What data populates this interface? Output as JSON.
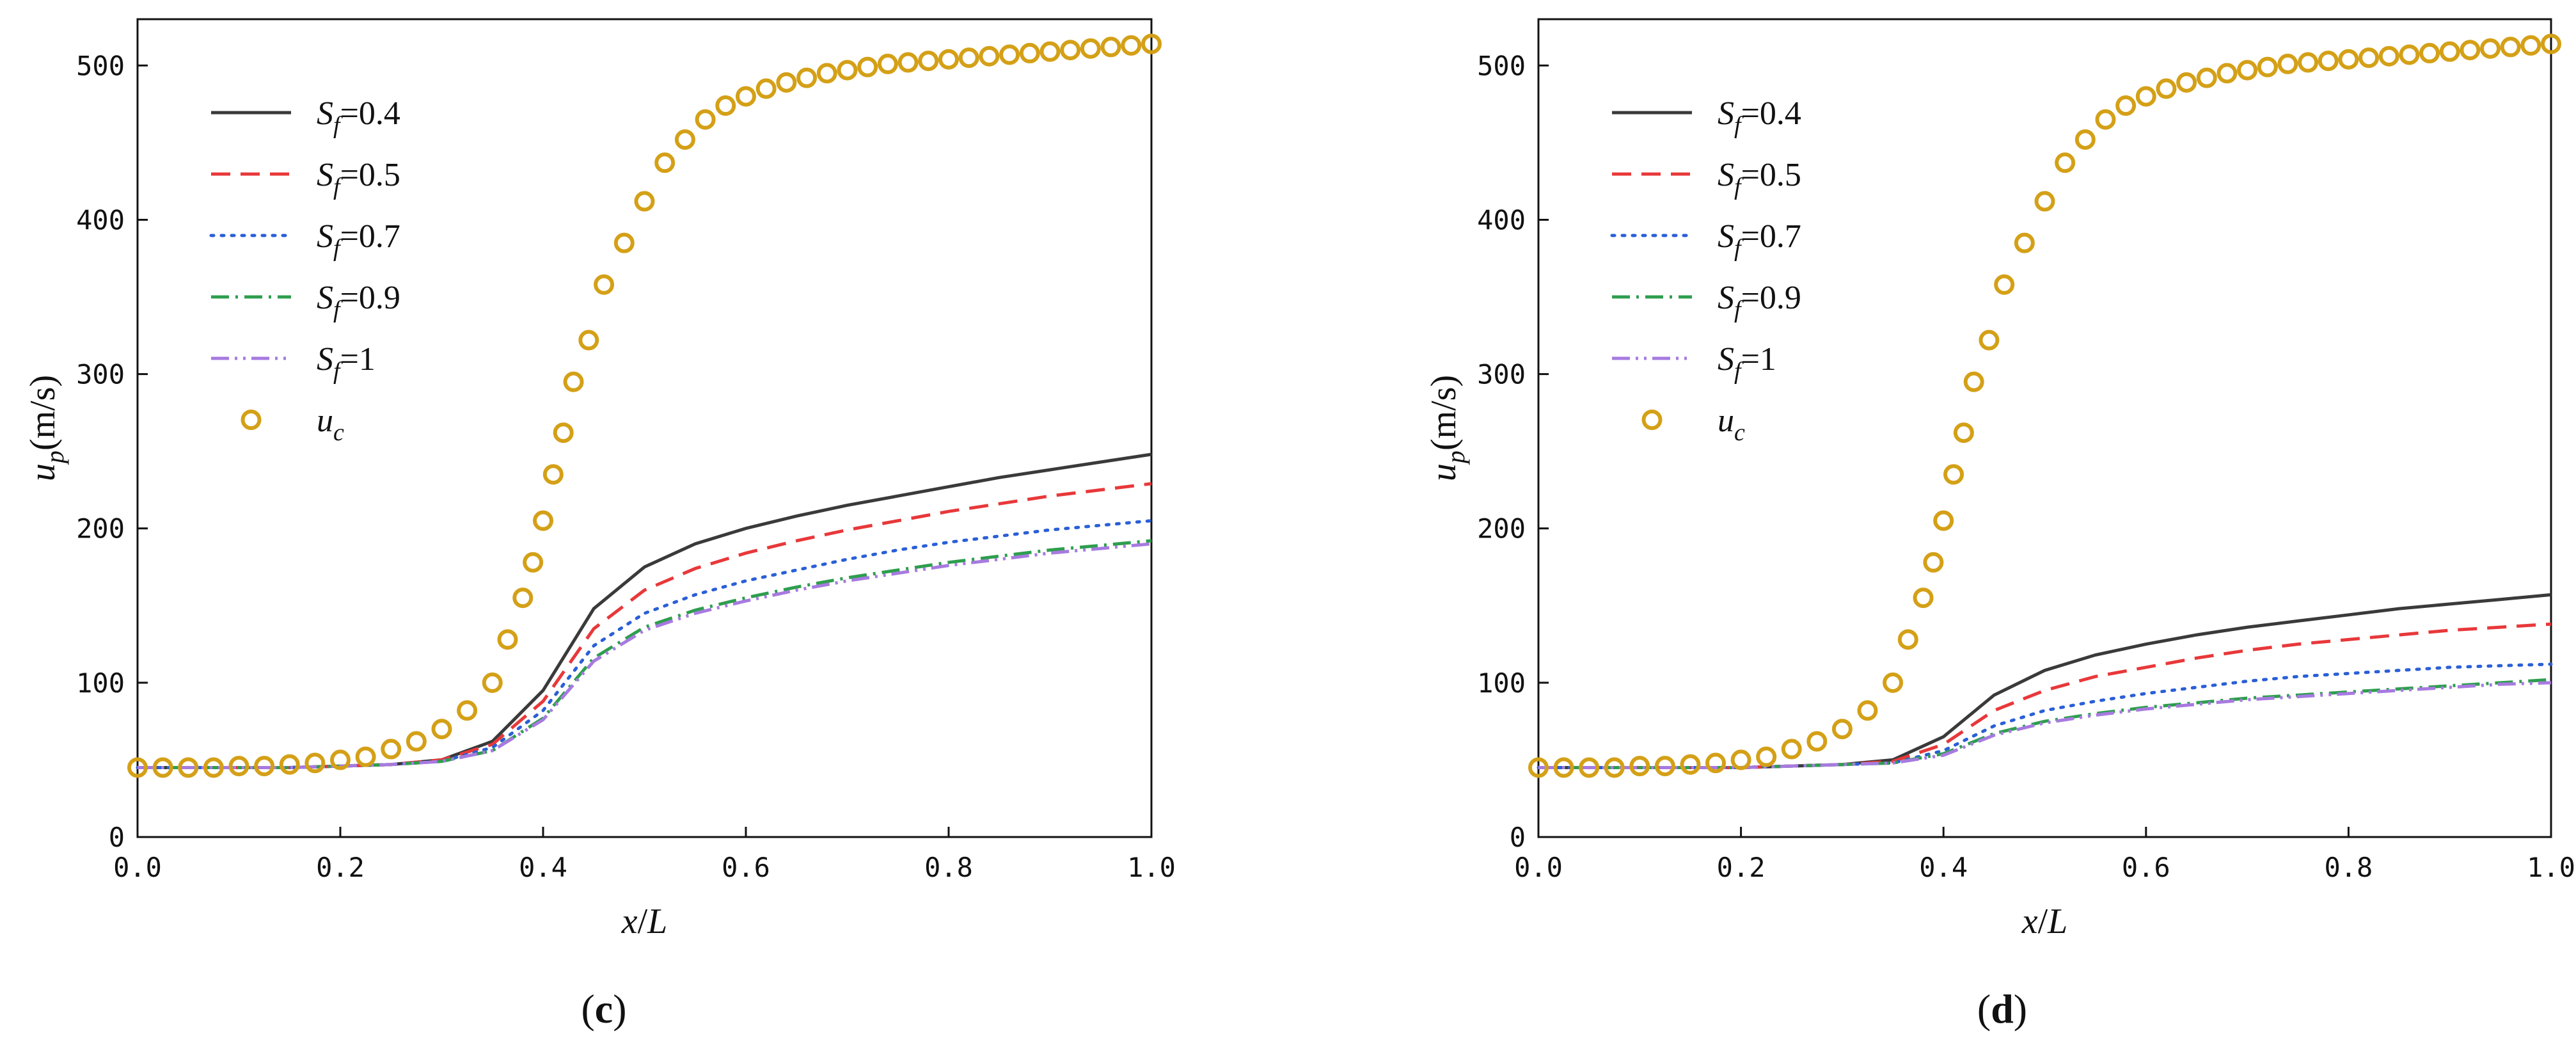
{
  "chart_data": [
    {
      "type": "line",
      "caption": "c",
      "xlabel_var": "x",
      "xlabel_sep": "/",
      "xlabel_div": "L",
      "ylabel_var": "u",
      "ylabel_sub": "p",
      "ylabel_unit": "(m/s)",
      "xlim": [
        0,
        1
      ],
      "ylim": [
        0,
        530
      ],
      "xticks": [
        0.0,
        0.2,
        0.4,
        0.6,
        0.8,
        1.0
      ],
      "xtick_labels": [
        "0.0",
        "0.2",
        "0.4",
        "0.6",
        "0.8",
        "1.0"
      ],
      "yticks": [
        0,
        100,
        200,
        300,
        400,
        500
      ],
      "ytick_labels": [
        "0",
        "100",
        "200",
        "300",
        "400",
        "500"
      ],
      "legend_position": "top-left",
      "x": [
        0.0,
        0.05,
        0.1,
        0.15,
        0.2,
        0.25,
        0.3,
        0.35,
        0.4,
        0.45,
        0.5,
        0.55,
        0.6,
        0.65,
        0.7,
        0.75,
        0.8,
        0.85,
        0.9,
        0.95,
        1.0
      ],
      "series": [
        {
          "name": "0.4",
          "sym": "S",
          "sub": "f",
          "eq": "=",
          "style": "solid",
          "color": "#3a3a3a",
          "values": [
            45,
            45,
            45,
            45,
            46,
            47,
            50,
            62,
            95,
            148,
            175,
            190,
            200,
            208,
            215,
            221,
            227,
            233,
            238,
            243,
            248
          ]
        },
        {
          "name": "0.5",
          "sym": "S",
          "sub": "f",
          "eq": "=",
          "style": "dashed",
          "color": "#e8383a",
          "values": [
            45,
            45,
            45,
            45,
            46,
            47,
            50,
            60,
            88,
            135,
            160,
            174,
            184,
            192,
            199,
            205,
            211,
            216,
            221,
            225,
            229
          ]
        },
        {
          "name": "0.7",
          "sym": "S",
          "sub": "f",
          "eq": "=",
          "style": "dotted",
          "color": "#2a5fd6",
          "values": [
            45,
            45,
            45,
            45,
            46,
            47,
            49,
            58,
            82,
            124,
            145,
            157,
            166,
            173,
            180,
            186,
            191,
            195,
            199,
            202,
            205
          ]
        },
        {
          "name": "0.9",
          "sym": "S",
          "sub": "f",
          "eq": "=",
          "style": "dashdot",
          "color": "#2e9e4e",
          "values": [
            45,
            45,
            45,
            45,
            46,
            47,
            49,
            56,
            77,
            116,
            136,
            147,
            155,
            162,
            168,
            173,
            178,
            182,
            186,
            189,
            192
          ]
        },
        {
          "name": "1",
          "sym": "S",
          "sub": "f",
          "eq": "=",
          "style": "dashdotdot",
          "color": "#a77ae0",
          "values": [
            45,
            45,
            45,
            45,
            46,
            47,
            49,
            56,
            76,
            114,
            134,
            145,
            153,
            160,
            166,
            171,
            176,
            180,
            184,
            187,
            190
          ]
        }
      ],
      "markers": {
        "sym": "u",
        "sub": "c",
        "color": "#d4a017",
        "x": [
          0.0,
          0.025,
          0.05,
          0.075,
          0.1,
          0.125,
          0.15,
          0.175,
          0.2,
          0.225,
          0.25,
          0.275,
          0.3,
          0.325,
          0.35,
          0.365,
          0.38,
          0.39,
          0.4,
          0.41,
          0.42,
          0.43,
          0.445,
          0.46,
          0.48,
          0.5,
          0.52,
          0.54,
          0.56,
          0.58,
          0.6,
          0.62,
          0.64,
          0.66,
          0.68,
          0.7,
          0.72,
          0.74,
          0.76,
          0.78,
          0.8,
          0.82,
          0.84,
          0.86,
          0.88,
          0.9,
          0.92,
          0.94,
          0.96,
          0.98,
          1.0
        ],
        "values": [
          45,
          45,
          45,
          45,
          46,
          46,
          47,
          48,
          50,
          52,
          57,
          62,
          70,
          82,
          100,
          128,
          155,
          178,
          205,
          235,
          262,
          295,
          322,
          358,
          385,
          412,
          437,
          452,
          465,
          474,
          480,
          485,
          489,
          492,
          495,
          497,
          499,
          501,
          502,
          503,
          504,
          505,
          506,
          507,
          508,
          509,
          510,
          511,
          512,
          513,
          514
        ]
      }
    },
    {
      "type": "line",
      "caption": "d",
      "xlabel_var": "x",
      "xlabel_sep": "/",
      "xlabel_div": "L",
      "ylabel_var": "u",
      "ylabel_sub": "p",
      "ylabel_unit": "(m/s)",
      "xlim": [
        0,
        1
      ],
      "ylim": [
        0,
        530
      ],
      "xticks": [
        0.0,
        0.2,
        0.4,
        0.6,
        0.8,
        1.0
      ],
      "xtick_labels": [
        "0.0",
        "0.2",
        "0.4",
        "0.6",
        "0.8",
        "1.0"
      ],
      "yticks": [
        0,
        100,
        200,
        300,
        400,
        500
      ],
      "ytick_labels": [
        "0",
        "100",
        "200",
        "300",
        "400",
        "500"
      ],
      "legend_position": "top-left",
      "x": [
        0.0,
        0.05,
        0.1,
        0.15,
        0.2,
        0.25,
        0.3,
        0.35,
        0.4,
        0.45,
        0.5,
        0.55,
        0.6,
        0.65,
        0.7,
        0.75,
        0.8,
        0.85,
        0.9,
        0.95,
        1.0
      ],
      "series": [
        {
          "name": "0.4",
          "sym": "S",
          "sub": "f",
          "eq": "=",
          "style": "solid",
          "color": "#3a3a3a",
          "values": [
            45,
            45,
            45,
            45,
            45,
            46,
            47,
            50,
            65,
            92,
            108,
            118,
            125,
            131,
            136,
            140,
            144,
            148,
            151,
            154,
            157
          ]
        },
        {
          "name": "0.5",
          "sym": "S",
          "sub": "f",
          "eq": "=",
          "style": "dashed",
          "color": "#e8383a",
          "values": [
            45,
            45,
            45,
            45,
            45,
            46,
            47,
            49,
            60,
            82,
            95,
            104,
            110,
            116,
            121,
            125,
            128,
            131,
            134,
            136,
            138
          ]
        },
        {
          "name": "0.7",
          "sym": "S",
          "sub": "f",
          "eq": "=",
          "style": "dotted",
          "color": "#2a5fd6",
          "values": [
            45,
            45,
            45,
            45,
            45,
            46,
            47,
            48,
            56,
            72,
            82,
            88,
            93,
            97,
            101,
            104,
            106,
            108,
            110,
            111,
            112
          ]
        },
        {
          "name": "0.9",
          "sym": "S",
          "sub": "f",
          "eq": "=",
          "style": "dashdot",
          "color": "#2e9e4e",
          "values": [
            45,
            45,
            45,
            45,
            45,
            46,
            47,
            48,
            54,
            67,
            75,
            80,
            84,
            87,
            90,
            92,
            94,
            96,
            98,
            100,
            102
          ]
        },
        {
          "name": "1",
          "sym": "S",
          "sub": "f",
          "eq": "=",
          "style": "dashdotdot",
          "color": "#a77ae0",
          "values": [
            45,
            45,
            45,
            45,
            45,
            46,
            47,
            48,
            53,
            66,
            74,
            79,
            83,
            86,
            89,
            91,
            93,
            95,
            97,
            99,
            100
          ]
        }
      ],
      "markers": {
        "sym": "u",
        "sub": "c",
        "color": "#d4a017",
        "x": [
          0.0,
          0.025,
          0.05,
          0.075,
          0.1,
          0.125,
          0.15,
          0.175,
          0.2,
          0.225,
          0.25,
          0.275,
          0.3,
          0.325,
          0.35,
          0.365,
          0.38,
          0.39,
          0.4,
          0.41,
          0.42,
          0.43,
          0.445,
          0.46,
          0.48,
          0.5,
          0.52,
          0.54,
          0.56,
          0.58,
          0.6,
          0.62,
          0.64,
          0.66,
          0.68,
          0.7,
          0.72,
          0.74,
          0.76,
          0.78,
          0.8,
          0.82,
          0.84,
          0.86,
          0.88,
          0.9,
          0.92,
          0.94,
          0.96,
          0.98,
          1.0
        ],
        "values": [
          45,
          45,
          45,
          45,
          46,
          46,
          47,
          48,
          50,
          52,
          57,
          62,
          70,
          82,
          100,
          128,
          155,
          178,
          205,
          235,
          262,
          295,
          322,
          358,
          385,
          412,
          437,
          452,
          465,
          474,
          480,
          485,
          489,
          492,
          495,
          497,
          499,
          501,
          502,
          503,
          504,
          505,
          506,
          507,
          508,
          509,
          510,
          511,
          512,
          513,
          514
        ]
      }
    }
  ]
}
